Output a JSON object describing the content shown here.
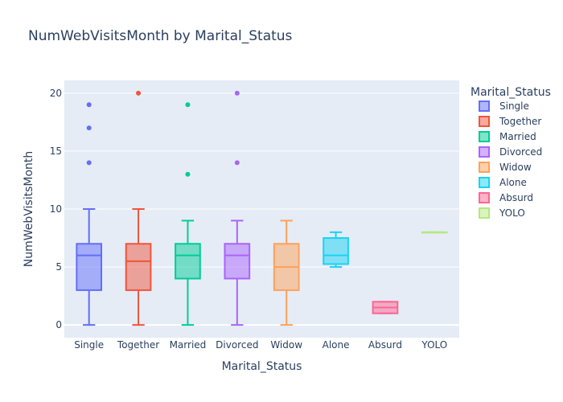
{
  "chart_data": {
    "type": "box",
    "title": "NumWebVisitsMonth by Marital_Status",
    "xlabel": "Marital_Status",
    "ylabel": "NumWebVisitsMonth",
    "ylim": [
      -1.1,
      21.1
    ],
    "yticks": [
      0,
      5,
      10,
      15,
      20
    ],
    "grid": true,
    "legend_title": "Marital_Status",
    "legend_position": "right",
    "categories": [
      "Single",
      "Together",
      "Married",
      "Divorced",
      "Widow",
      "Alone",
      "Absurd",
      "YOLO"
    ],
    "series": [
      {
        "name": "Single",
        "color": "#636efa",
        "q1": 3,
        "median": 6,
        "q3": 7,
        "lowerfence": 0,
        "upperfence": 10,
        "outliers": [
          14,
          17,
          19
        ]
      },
      {
        "name": "Together",
        "color": "#EF553B",
        "q1": 3,
        "median": 5.5,
        "q3": 7,
        "lowerfence": 0,
        "upperfence": 10,
        "outliers": [
          20
        ]
      },
      {
        "name": "Married",
        "color": "#00cc96",
        "q1": 4,
        "median": 6,
        "q3": 7,
        "lowerfence": 0,
        "upperfence": 9,
        "outliers": [
          13,
          19
        ]
      },
      {
        "name": "Divorced",
        "color": "#ab63fa",
        "q1": 4,
        "median": 6,
        "q3": 7,
        "lowerfence": 0,
        "upperfence": 9,
        "outliers": [
          14,
          20
        ]
      },
      {
        "name": "Widow",
        "color": "#FFA15A",
        "q1": 3,
        "median": 5,
        "q3": 7,
        "lowerfence": 0,
        "upperfence": 9,
        "outliers": []
      },
      {
        "name": "Alone",
        "color": "#19d3f3",
        "q1": 5.25,
        "median": 6,
        "q3": 7.5,
        "lowerfence": 5,
        "upperfence": 8,
        "outliers": []
      },
      {
        "name": "Absurd",
        "color": "#FF6692",
        "q1": 1,
        "median": 1.5,
        "q3": 2,
        "lowerfence": 1,
        "upperfence": 2,
        "outliers": []
      },
      {
        "name": "YOLO",
        "color": "#B6E880",
        "q1": 8,
        "median": 8,
        "q3": 8,
        "lowerfence": 8,
        "upperfence": 8,
        "outliers": []
      }
    ]
  }
}
